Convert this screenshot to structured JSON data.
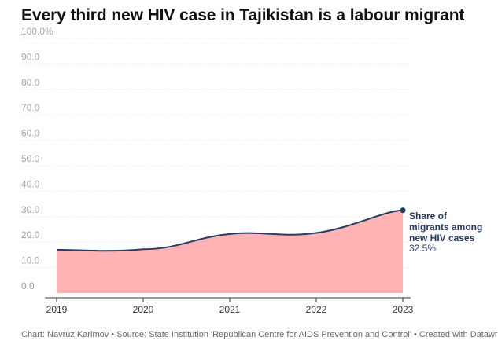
{
  "title": "Every third new HIV case in Tajikistan is a labour migrant",
  "footer": "Chart: Navruz Karimov • Source: State Institution 'Republican Centre for AIDS Prevention and Control' • Created with Datawrapper",
  "annotation": {
    "label": "Share of migrants among new HIV cases",
    "value": "32.5%"
  },
  "colors": {
    "line": "#263a66",
    "fill": "#ffb3b3",
    "grid": "#e0e0e0",
    "axis": "#333333"
  },
  "chart_data": {
    "type": "area",
    "title": "Every third new HIV case in Tajikistan is a labour migrant",
    "x": [
      "2019",
      "2020",
      "2021",
      "2022",
      "2023"
    ],
    "series": [
      {
        "name": "Share of migrants among new HIV cases",
        "values": [
          17.0,
          17.2,
          23.2,
          23.6,
          32.5
        ]
      }
    ],
    "ylim": [
      0,
      100
    ],
    "yticks": [
      "0.0",
      "10.0",
      "20.0",
      "30.0",
      "40.0",
      "50.0",
      "60.0",
      "70.0",
      "80.0",
      "90.0",
      "100.0%"
    ],
    "xlabel": "",
    "ylabel": "",
    "grid": true
  }
}
